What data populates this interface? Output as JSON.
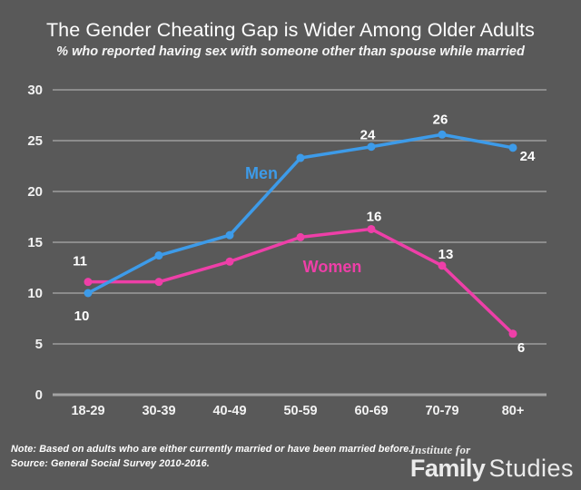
{
  "colors": {
    "background": "#595959",
    "gridline": "#8c8c8c",
    "axis_line": "#a3a3a3",
    "tick_text": "#f2f2f2",
    "label_text": "#ffffff",
    "men": "#3d9be9",
    "women": "#ee3fa8"
  },
  "chart_data": {
    "type": "line",
    "title": "The Gender Cheating Gap is Wider Among Older Adults",
    "subtitle": "% who reported having sex with someone other than spouse while married",
    "xlabel": "",
    "ylabel": "",
    "categories": [
      "18-29",
      "30-39",
      "40-49",
      "50-59",
      "60-69",
      "70-79",
      "80+"
    ],
    "series": [
      {
        "name": "Women",
        "color": "#ee3fa8",
        "values": [
          11.1,
          11.1,
          13.1,
          15.5,
          16.3,
          12.7,
          6
        ],
        "point_labels": [
          "11",
          "",
          "",
          "",
          "16",
          "13",
          "6"
        ]
      },
      {
        "name": "Men",
        "color": "#3d9be9",
        "values": [
          10,
          13.7,
          15.7,
          23.3,
          24.4,
          25.6,
          24.3
        ],
        "point_labels": [
          "10",
          "",
          "",
          "",
          "24",
          "26",
          "24"
        ]
      }
    ],
    "ylim": [
      0,
      30
    ],
    "yticks": [
      0,
      5,
      10,
      15,
      20,
      25,
      30
    ],
    "grid": "horizontal",
    "legend": "inline-labels-near-lines",
    "markers": "circle"
  },
  "footer": {
    "note": "Note: Based on adults who are either currently married or have been married before.",
    "source": "Source: General Social Survey 2010-2016.",
    "logo": {
      "line1": "Institute for",
      "word1": "Family",
      "word2": "Studies"
    }
  }
}
